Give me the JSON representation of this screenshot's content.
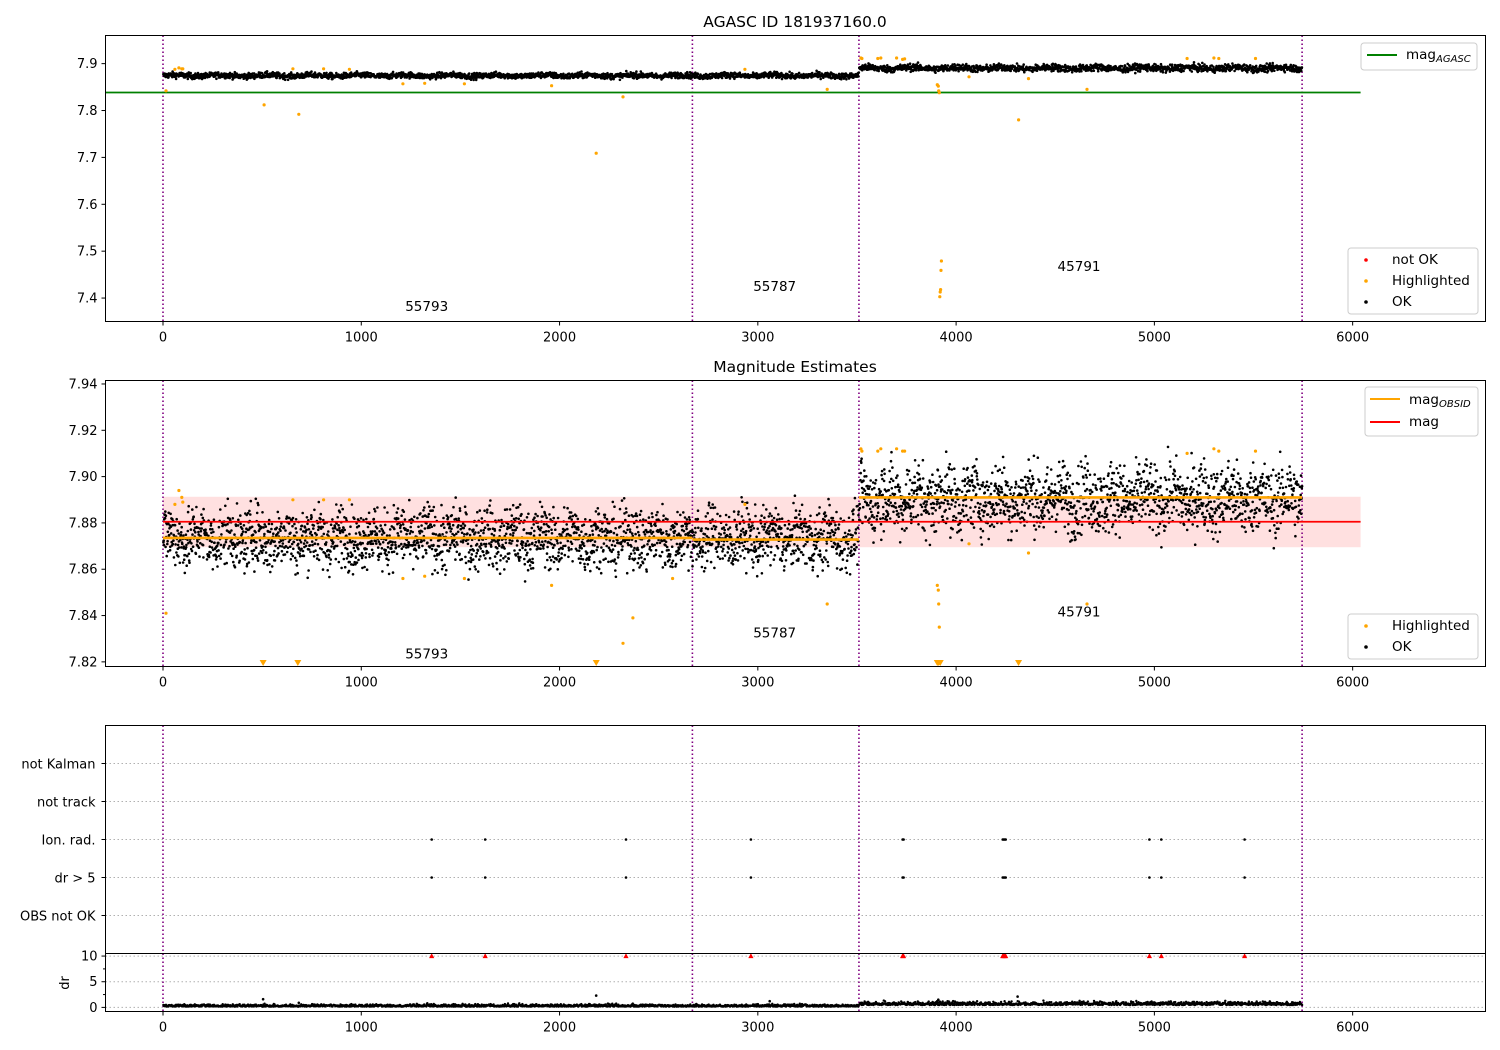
{
  "colors": {
    "ok": "#000000",
    "highlighted": "#ffa500",
    "not_ok": "#ff0000",
    "agasc_line": "#008000",
    "mag_line": "#ff0000",
    "obsid_line": "#ffa500",
    "band": "#ffcccc",
    "obs_boundary": "#800080",
    "grid": "#b0b0b0"
  },
  "chart_data": [
    {
      "type": "scatter",
      "title": "AGASC ID 181937160.0",
      "xlim": [
        -290,
        6670
      ],
      "ylim": [
        7.35,
        7.96
      ],
      "x_ticks": [
        0,
        1000,
        2000,
        3000,
        4000,
        5000,
        6000
      ],
      "y_ticks": [
        7.4,
        7.5,
        7.6,
        7.7,
        7.8,
        7.9
      ],
      "legend_top": {
        "placement": "top-right",
        "entries": [
          {
            "label": "mag",
            "subscript": "AGASC",
            "color_key": "agasc_line"
          }
        ]
      },
      "legend_bottom": {
        "placement": "lower-right",
        "entries": [
          {
            "label": "not OK",
            "color_key": "not_ok"
          },
          {
            "label": "Highlighted",
            "color_key": "highlighted"
          },
          {
            "label": "OK",
            "color_key": "ok"
          }
        ]
      },
      "obs_boundaries": [
        0,
        2670,
        3510,
        5745
      ],
      "obsids": [
        {
          "label": "55793",
          "x": 1330,
          "y": 7.372
        },
        {
          "label": "55787",
          "x": 3085,
          "y": 7.415
        },
        {
          "label": "45791",
          "x": 4620,
          "y": 7.458
        }
      ],
      "hlines": [
        {
          "name": "mag_AGASC",
          "y": 7.8385,
          "x_from": -290,
          "x_to": 6040,
          "color_key": "agasc_line"
        }
      ],
      "ok_band": [
        {
          "x_from": 0,
          "x_to": 3510,
          "y_center": 7.8745,
          "spread": 0.0045
        },
        {
          "x_from": 3510,
          "x_to": 5745,
          "y_center": 7.8905,
          "spread": 0.0055
        }
      ],
      "highlighted_points": [
        [
          15,
          7.842
        ],
        [
          60,
          7.888
        ],
        [
          80,
          7.891
        ],
        [
          95,
          7.889
        ],
        [
          100,
          7.889
        ],
        [
          510,
          7.812
        ],
        [
          655,
          7.889
        ],
        [
          685,
          7.792
        ],
        [
          810,
          7.889
        ],
        [
          940,
          7.888
        ],
        [
          1210,
          7.857
        ],
        [
          1320,
          7.858
        ],
        [
          1520,
          7.857
        ],
        [
          1960,
          7.853
        ],
        [
          2185,
          7.709
        ],
        [
          2320,
          7.829
        ],
        [
          2935,
          7.888
        ],
        [
          3350,
          7.845
        ],
        [
          3520,
          7.912
        ],
        [
          3525,
          7.911
        ],
        [
          3605,
          7.911
        ],
        [
          3620,
          7.912
        ],
        [
          3700,
          7.912
        ],
        [
          3730,
          7.909
        ],
        [
          3740,
          7.91
        ],
        [
          3905,
          7.855
        ],
        [
          3910,
          7.852
        ],
        [
          3912,
          7.842
        ],
        [
          3915,
          7.838
        ],
        [
          3918,
          7.403
        ],
        [
          3920,
          7.413
        ],
        [
          3922,
          7.418
        ],
        [
          3924,
          7.459
        ],
        [
          3926,
          7.479
        ],
        [
          4065,
          7.872
        ],
        [
          4315,
          7.78
        ],
        [
          4365,
          7.868
        ],
        [
          4660,
          7.845
        ],
        [
          5165,
          7.911
        ],
        [
          5300,
          7.912
        ],
        [
          5325,
          7.911
        ],
        [
          5510,
          7.911
        ]
      ]
    },
    {
      "type": "scatter",
      "title": "Magnitude Estimates",
      "xlim": [
        -290,
        6670
      ],
      "ylim": [
        7.818,
        7.9415
      ],
      "x_ticks": [
        0,
        1000,
        2000,
        3000,
        4000,
        5000,
        6000
      ],
      "y_ticks": [
        7.82,
        7.84,
        7.86,
        7.88,
        7.9,
        7.92,
        7.94
      ],
      "legend_top": {
        "placement": "top-right",
        "entries": [
          {
            "label": "mag",
            "subscript": "OBSID",
            "color_key": "obsid_line"
          },
          {
            "label": "mag",
            "subscript": "",
            "color_key": "mag_line"
          }
        ]
      },
      "legend_bottom": {
        "placement": "lower-right",
        "entries": [
          {
            "label": "Highlighted",
            "color_key": "highlighted"
          },
          {
            "label": "OK",
            "color_key": "ok"
          }
        ]
      },
      "obs_boundaries": [
        0,
        2670,
        3510,
        5745
      ],
      "obsids": [
        {
          "label": "55793",
          "x": 1330,
          "y": 7.8215
        },
        {
          "label": "55787",
          "x": 3085,
          "y": 7.8305
        },
        {
          "label": "45791",
          "x": 4620,
          "y": 7.8395
        }
      ],
      "mag_line": {
        "y": 7.8805,
        "x_from": 0,
        "x_to": 6040,
        "band": [
          7.8695,
          7.8913
        ]
      },
      "obsid_lines": [
        {
          "x_from": 0,
          "x_to": 2670,
          "y": 7.8735
        },
        {
          "x_from": 2670,
          "x_to": 3510,
          "y": 7.8728
        },
        {
          "x_from": 3510,
          "x_to": 5745,
          "y": 7.891
        }
      ],
      "ok_scatter": [
        {
          "x_from": 0,
          "x_to": 3510,
          "y_center": 7.8735,
          "spread": 0.0065
        },
        {
          "x_from": 3510,
          "x_to": 5745,
          "y_center": 7.8905,
          "spread": 0.0075
        }
      ],
      "highlighted_points": [
        [
          15,
          7.841
        ],
        [
          60,
          7.888
        ],
        [
          80,
          7.894
        ],
        [
          95,
          7.891
        ],
        [
          100,
          7.889
        ],
        [
          655,
          7.89
        ],
        [
          810,
          7.89
        ],
        [
          940,
          7.89
        ],
        [
          1210,
          7.856
        ],
        [
          1320,
          7.857
        ],
        [
          1520,
          7.856
        ],
        [
          1960,
          7.853
        ],
        [
          2320,
          7.828
        ],
        [
          2370,
          7.839
        ],
        [
          2570,
          7.856
        ],
        [
          2935,
          7.888
        ],
        [
          3350,
          7.845
        ],
        [
          3520,
          7.912
        ],
        [
          3525,
          7.911
        ],
        [
          3605,
          7.911
        ],
        [
          3620,
          7.912
        ],
        [
          3700,
          7.912
        ],
        [
          3730,
          7.911
        ],
        [
          3740,
          7.911
        ],
        [
          3905,
          7.853
        ],
        [
          3910,
          7.851
        ],
        [
          3912,
          7.845
        ],
        [
          3915,
          7.835
        ],
        [
          4065,
          7.871
        ],
        [
          4365,
          7.867
        ],
        [
          4660,
          7.845
        ],
        [
          5165,
          7.91
        ],
        [
          5300,
          7.912
        ],
        [
          5325,
          7.911
        ],
        [
          5510,
          7.911
        ]
      ],
      "off_scale_points": [
        [
          505,
          7.8195
        ],
        [
          680,
          7.8195
        ],
        [
          2185,
          7.8195
        ],
        [
          3905,
          7.8195
        ],
        [
          3912,
          7.8195
        ],
        [
          3920,
          7.8195
        ],
        [
          4315,
          7.8195
        ]
      ]
    },
    {
      "type": "scatter",
      "title": "",
      "xlim": [
        -290,
        6670
      ],
      "categories": [
        "not Kalman",
        "not track",
        "Ion. rad.",
        "dr > 5",
        "OBS not OK"
      ],
      "obs_boundaries": [
        0,
        2670,
        3510,
        5745
      ],
      "flag_points": [
        {
          "category": "Ion. rad.",
          "x": [
            1355,
            1625,
            2335,
            2965,
            3730,
            3735,
            4235,
            4240,
            4245,
            4250,
            4975,
            5035,
            5455
          ]
        },
        {
          "category": "dr > 5",
          "x": [
            1355,
            1625,
            2335,
            2965,
            3730,
            3735,
            4235,
            4240,
            4245,
            4250,
            4975,
            5035,
            5455
          ]
        }
      ]
    },
    {
      "type": "scatter",
      "title": "",
      "ylabel": "dr",
      "xlim": [
        -290,
        6670
      ],
      "ylim": [
        -0.8,
        10.5
      ],
      "x_ticks": [
        0,
        1000,
        2000,
        3000,
        4000,
        5000,
        6000
      ],
      "y_ticks": [
        0,
        5,
        10
      ],
      "obs_boundaries": [
        0,
        2670,
        3510,
        5745
      ],
      "clipped_markers_y": 10,
      "clipped_markers_x": [
        1355,
        1625,
        2335,
        2965,
        3730,
        3735,
        4235,
        4240,
        4245,
        4250,
        4975,
        5035,
        5455
      ],
      "dr_band": [
        {
          "x_from": 0,
          "x_to": 3510,
          "y_center": 0.15,
          "spread": 0.22
        },
        {
          "x_from": 3510,
          "x_to": 5745,
          "y_center": 0.45,
          "spread": 0.32
        }
      ],
      "dr_outliers": [
        [
          505,
          1.6
        ],
        [
          685,
          0.9
        ],
        [
          2185,
          2.3
        ],
        [
          3060,
          1.2
        ],
        [
          3910,
          1.5
        ],
        [
          3918,
          1.1
        ],
        [
          4310,
          2.1
        ],
        [
          3525,
          0.9
        ]
      ]
    }
  ]
}
